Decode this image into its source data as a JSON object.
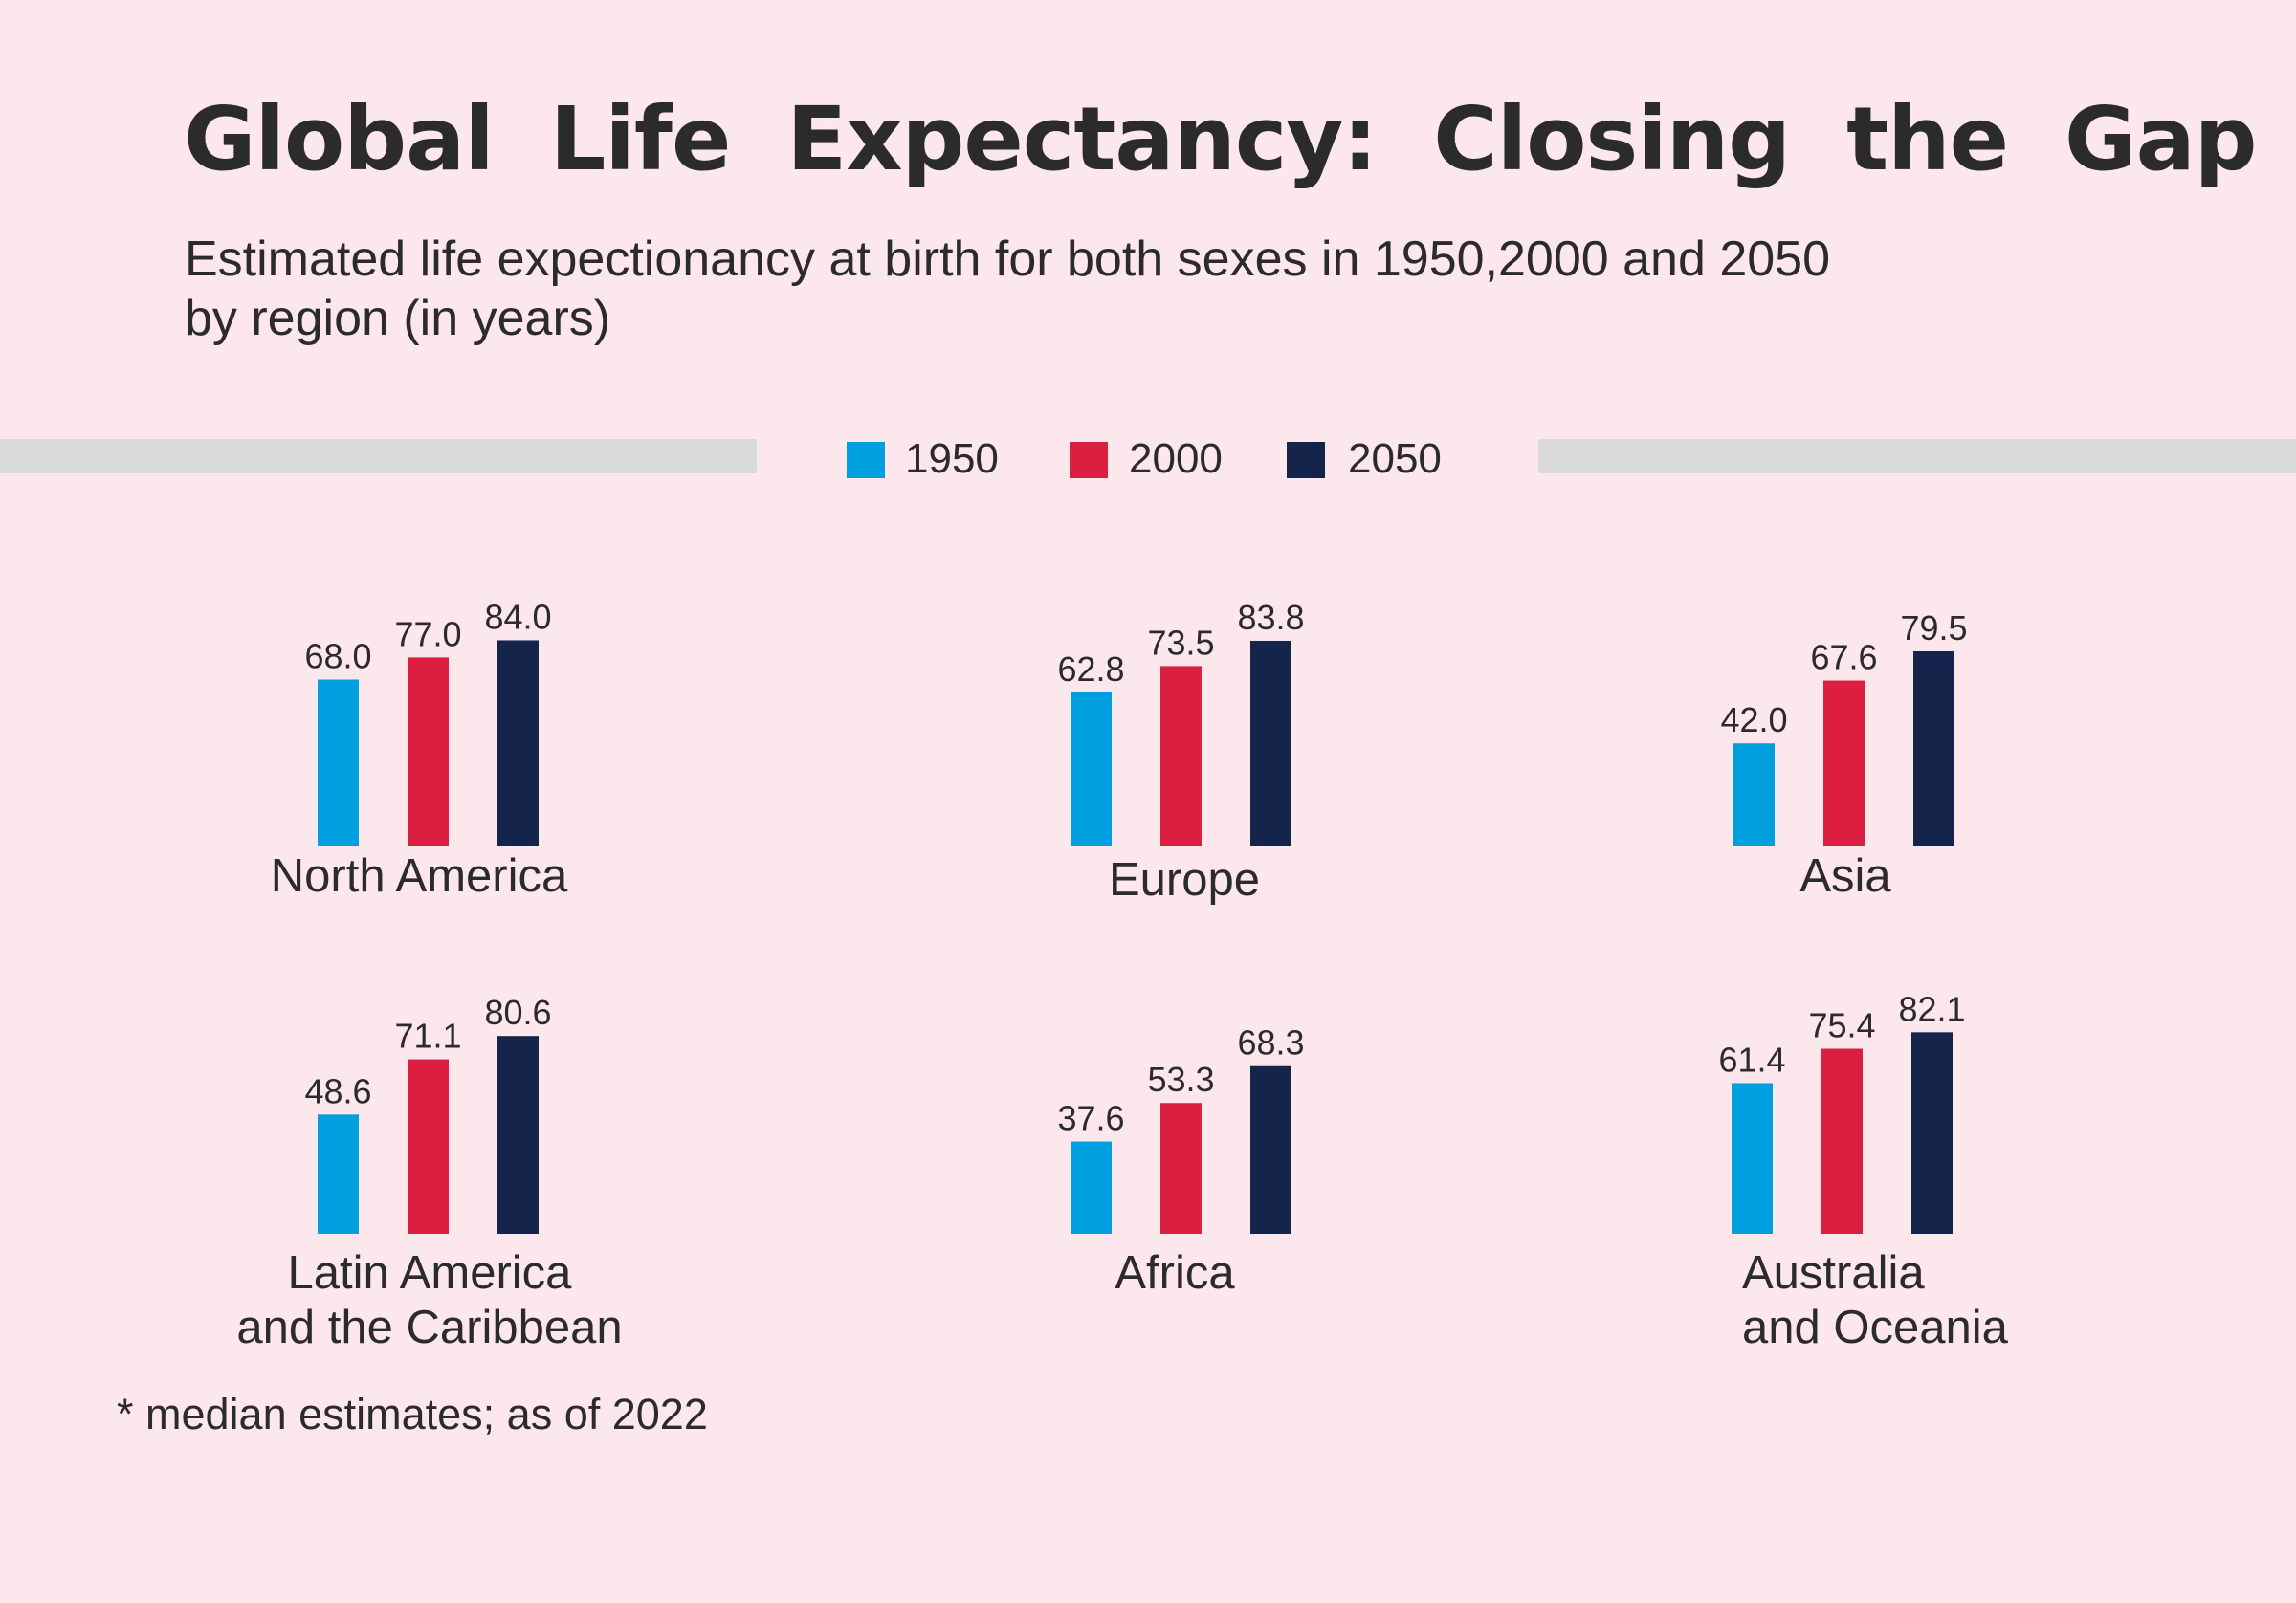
{
  "title": "Global Life Expectancy: Closing the Gap",
  "subtitle_line1": "Estimated life expectionancy at birth for both sexes in 1950,2000 and 2050",
  "subtitle_line2": "by region (in years)",
  "footnote": "* median estimates; as of 2022",
  "colors": {
    "background": "#fce8ec",
    "1950": "#00a0e0",
    "2000": "#dc1f40",
    "2050": "#15244a",
    "band": "#d9dbda"
  },
  "chart_data": {
    "type": "bar",
    "title": "Global Life Expectancy: Closing the Gap",
    "legend": [
      "1950",
      "2000",
      "2050"
    ],
    "legend_position": "top-center",
    "grid": false,
    "ylim": [
      0,
      90
    ],
    "categories": [
      "North America",
      "Europe",
      "Asia",
      "Latin America and the Caribbean",
      "Africa",
      "Australia and Oceania"
    ],
    "region_labels": [
      [
        "North America"
      ],
      [
        "Europe"
      ],
      [
        "Asia"
      ],
      [
        "Latin America",
        "and the Caribbean"
      ],
      [
        "Africa"
      ],
      [
        "Australia",
        "and Oceania"
      ]
    ],
    "series": [
      {
        "name": "1950",
        "values": [
          68.0,
          62.8,
          42.0,
          48.6,
          37.6,
          61.4
        ],
        "labels": [
          "68.0",
          "62.8",
          "42.0",
          "48.6",
          "37.6",
          "61.4"
        ]
      },
      {
        "name": "2000",
        "values": [
          77.0,
          73.5,
          67.6,
          71.1,
          53.3,
          75.4
        ],
        "labels": [
          "77.0",
          "73.5",
          "67.6",
          "71.1",
          "53.3",
          "75.4"
        ]
      },
      {
        "name": "2050",
        "values": [
          84.0,
          83.8,
          79.5,
          80.6,
          68.3,
          82.1
        ],
        "labels": [
          "84.0",
          "83.8",
          "79.5",
          "80.6",
          "68.3",
          "82.1"
        ]
      }
    ]
  }
}
